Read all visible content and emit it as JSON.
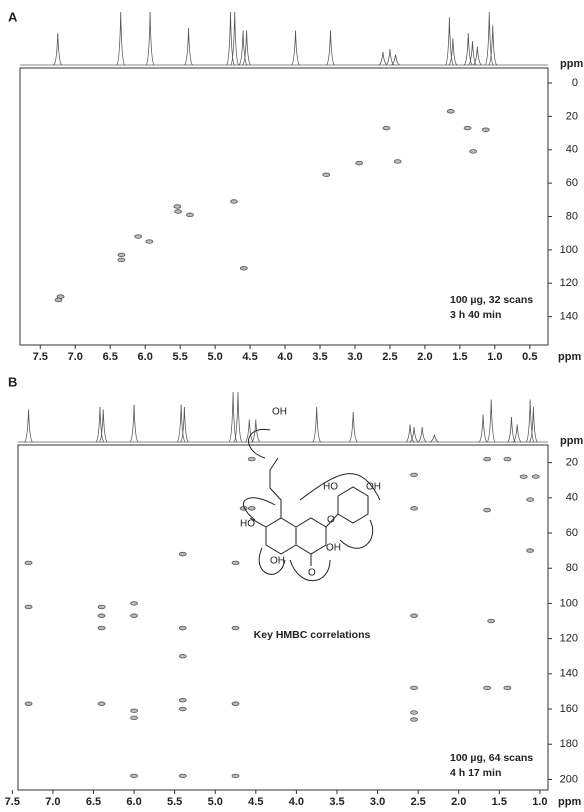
{
  "chart_data": [
    {
      "type": "scatter",
      "panel": "A",
      "xlabel": "ppm",
      "ylabel": "ppm",
      "x": [
        1.63,
        2.55,
        1.39,
        1.13,
        1.31,
        2.39,
        2.94,
        3.41,
        4.73,
        5.54,
        5.53,
        5.36,
        6.1,
        5.94,
        6.34,
        6.34,
        4.59,
        7.21,
        7.24
      ],
      "values": [
        17,
        27,
        27,
        28,
        41,
        47,
        48,
        55,
        71,
        74,
        77,
        79,
        92,
        95,
        103,
        106,
        111,
        128,
        130
      ],
      "xlim": [
        7.79,
        0.24
      ],
      "ylim": [
        -9,
        157
      ],
      "xticks": [
        7.5,
        {
          "value": 7,
          "label": "7.0"
        },
        6.5,
        {
          "value": 6,
          "label": "6.0"
        },
        5.5,
        {
          "value": 5,
          "label": "5.0"
        },
        4.5,
        {
          "value": 4,
          "label": "4.0"
        },
        3.5,
        {
          "value": 3,
          "label": "3.0"
        },
        2.5,
        {
          "value": 2,
          "label": "2.0"
        },
        1.5,
        {
          "value": 1,
          "label": "1.0"
        },
        0.5
      ],
      "yticks": [
        0,
        20,
        40,
        60,
        80,
        100,
        120,
        140
      ],
      "spectrum": {
        "x": [
          7.25,
          6.35,
          5.93,
          5.38,
          4.78,
          4.72,
          4.6,
          4.55,
          3.85,
          3.35,
          2.6,
          2.5,
          2.42,
          1.65,
          1.6,
          1.38,
          1.32,
          1.25,
          1.08,
          1.03
        ],
        "values": [
          0.6,
          1,
          1,
          0.7,
          1,
          1,
          0.65,
          0.65,
          0.65,
          0.65,
          0.25,
          0.3,
          0.2,
          0.9,
          0.5,
          0.6,
          0.45,
          0.35,
          1,
          0.75
        ]
      },
      "annotation": [
        "100 µg, 32 scans",
        "3 h 40 min"
      ]
    },
    {
      "type": "scatter",
      "panel": "B",
      "xlabel": "ppm",
      "ylabel": "ppm",
      "x": [
        4.55,
        1.65,
        1.4,
        1.2,
        1.05,
        2.55,
        4.65,
        4.55,
        2.55,
        1.65,
        1.12,
        1.12,
        7.3,
        5.4,
        4.75,
        7.3,
        6.4,
        6.4,
        6.0,
        6.0,
        6.4,
        5.4,
        4.75,
        5.4,
        2.55,
        1.6,
        2.55,
        1.65,
        1.4,
        7.3,
        6.4,
        6.0,
        6.0,
        5.4,
        5.4,
        4.75,
        2.55,
        2.55,
        6.0,
        5.4,
        4.75
      ],
      "values": [
        18,
        18,
        18,
        28,
        28,
        27,
        46,
        46,
        46,
        47,
        41,
        70,
        77,
        72,
        77,
        102,
        102,
        107,
        100,
        107,
        114,
        114,
        114,
        130,
        107,
        110,
        148,
        148,
        148,
        157,
        157,
        161,
        165,
        155,
        160,
        157,
        162,
        166,
        198,
        198,
        198
      ],
      "xlim": [
        7.43,
        0.9
      ],
      "ylim": [
        10,
        206
      ],
      "xticks": [
        7.5,
        {
          "value": 7,
          "label": "7.0"
        },
        6.5,
        {
          "value": 6,
          "label": "6.0"
        },
        5.5,
        {
          "value": 5,
          "label": "5.0"
        },
        4.5,
        {
          "value": 4,
          "label": "4.0"
        },
        3.5,
        {
          "value": 3,
          "label": "3.0"
        },
        2.5,
        {
          "value": 2,
          "label": "2.0"
        },
        1.5,
        {
          "value": 1,
          "label": "1.0"
        }
      ],
      "yticks": [
        20,
        40,
        60,
        80,
        100,
        120,
        140,
        160,
        180,
        200
      ],
      "spectrum": {
        "x": [
          7.3,
          6.42,
          6.38,
          6.0,
          5.42,
          5.38,
          4.78,
          4.72,
          4.58,
          4.5,
          3.75,
          3.3,
          2.6,
          2.55,
          2.45,
          2.3,
          1.7,
          1.6,
          1.35,
          1.28,
          1.12,
          1.08
        ],
        "values": [
          0.65,
          0.7,
          0.65,
          0.75,
          0.75,
          0.7,
          1,
          1,
          0.45,
          0.45,
          0.7,
          0.6,
          0.35,
          0.3,
          0.3,
          0.15,
          0.55,
          0.85,
          0.5,
          0.35,
          0.85,
          0.7
        ]
      },
      "annotation": [
        "100 µg, 64 scans",
        "4 h 17 min"
      ],
      "caption": "Key HMBC correlations",
      "structure_labels": [
        "OH",
        "HO",
        "OH",
        "HO",
        "OH",
        "OH",
        "O",
        "O"
      ]
    }
  ]
}
